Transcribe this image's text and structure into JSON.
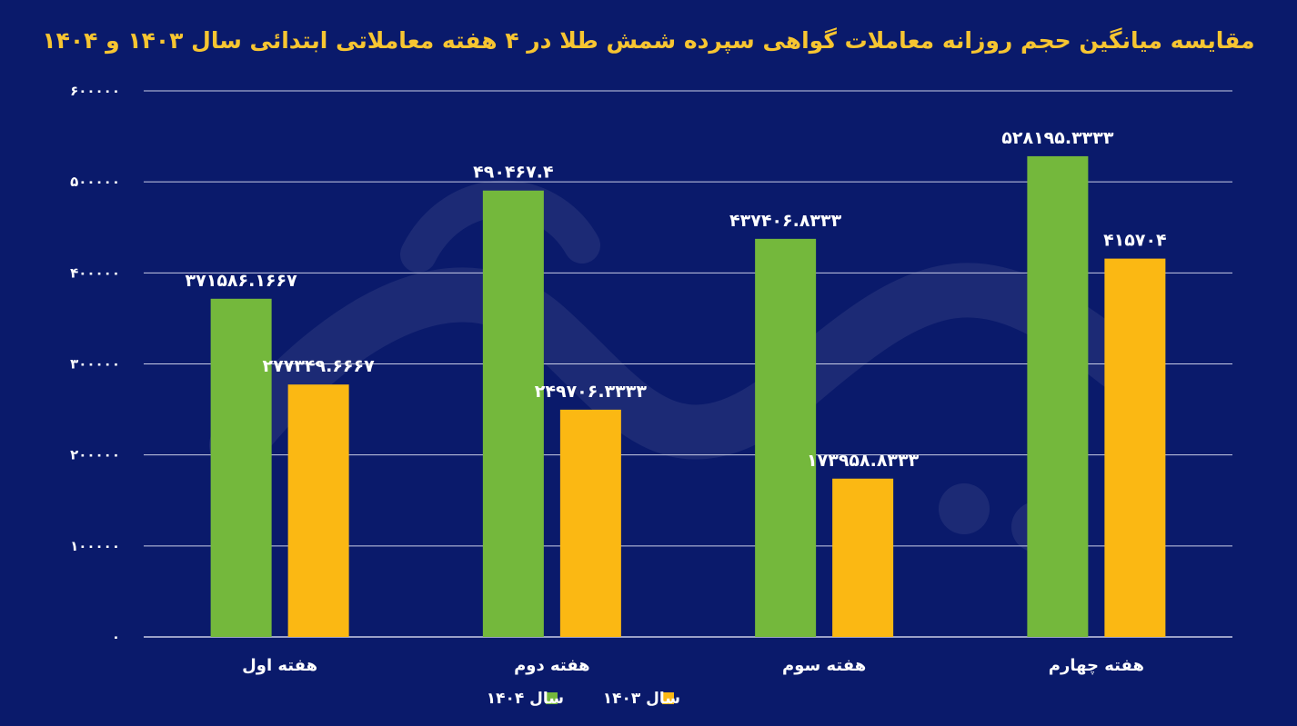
{
  "chart_data": {
    "type": "bar",
    "title": "مقایسه میانگین حجم روزانه معاملات گواهی سپرده شمش طلا در ۴ هفته معاملاتی ابتدائی سال ۱۴۰۳ و ۱۴۰۴",
    "xlabel": "",
    "ylabel": "",
    "categories": [
      "هفته اول",
      "هفته دوم",
      "هفته سوم",
      "هفته چهارم"
    ],
    "series": [
      {
        "name": "سال ۱۴۰۴",
        "color": "#74b83c",
        "values": [
          371586.1667,
          490467.4,
          437406.8333,
          528195.3333
        ],
        "labels": [
          "۳۷۱۵۸۶.۱۶۶۷",
          "۴۹۰۴۶۷.۴",
          "۴۳۷۴۰۶.۸۳۳۳",
          "۵۲۸۱۹۵.۳۳۳۳"
        ]
      },
      {
        "name": "سال ۱۴۰۳",
        "color": "#fbb813",
        "values": [
          277349.6667,
          249706.3333,
          173958.8333,
          415704
        ],
        "labels": [
          "۲۷۷۳۴۹.۶۶۶۷",
          "۲۴۹۷۰۶.۳۳۳۳",
          "۱۷۳۹۵۸.۸۳۳۳",
          "۴۱۵۷۰۴"
        ]
      }
    ],
    "ylim": [
      0,
      600000
    ],
    "yticks": [
      0,
      100000,
      200000,
      300000,
      400000,
      500000,
      600000
    ],
    "ytick_labels": [
      "۰",
      "۱۰۰۰۰۰",
      "۲۰۰۰۰۰",
      "۳۰۰۰۰۰",
      "۴۰۰۰۰۰",
      "۵۰۰۰۰۰",
      "۶۰۰۰۰۰"
    ],
    "grid": true,
    "legend": "bottom-center",
    "colors": {
      "background": "#0a1a6b",
      "title": "#f7c531",
      "text": "#ffffff",
      "grid": "#c9cde6"
    }
  }
}
